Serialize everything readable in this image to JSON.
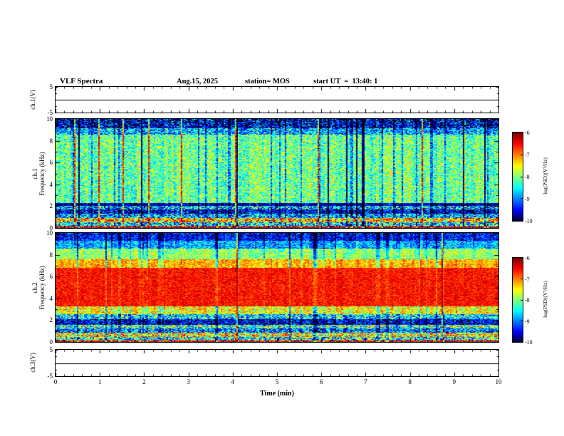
{
  "header": {
    "title": "VLF Spectra",
    "date": "Aug.15, 2025",
    "station": "station= MOS",
    "start_ut": "start UT  =  13:40: 1"
  },
  "xaxis": {
    "label": "Time (min)",
    "range": [
      0,
      10
    ],
    "ticks": [
      0,
      1,
      2,
      3,
      4,
      5,
      6,
      7,
      8,
      9,
      10
    ]
  },
  "panels": {
    "wave1": {
      "ylabel": "ch.1(V)",
      "ylim": [
        -5,
        5
      ],
      "yticks": [
        5,
        -5
      ]
    },
    "spec1": {
      "ylabel1": "ch.1",
      "ylabel2": "Frequency (kHz)",
      "ylim": [
        0,
        10
      ],
      "yticks": [
        0,
        2,
        4,
        6,
        8,
        10
      ]
    },
    "spec2": {
      "ylabel1": "ch.2",
      "ylabel2": "Frequency (kHz)",
      "ylim": [
        0,
        10
      ],
      "yticks": [
        0,
        2,
        4,
        6,
        8,
        10
      ]
    },
    "wave3": {
      "ylabel": "ch.3(V)",
      "ylim": [
        -5,
        5
      ],
      "yticks": [
        5,
        -5
      ]
    }
  },
  "colorbars": {
    "label": "log(PSD)(V²/Hz)",
    "ticks": [
      -6,
      -7,
      -8,
      -9,
      -10
    ],
    "top_value": -6,
    "bottom_value": -10
  },
  "chart_data": [
    {
      "type": "line",
      "name": "ch1_waveform",
      "ylabel": "ch.1(V)",
      "ylim": [
        -5,
        5
      ],
      "yticks": [
        5,
        -5
      ],
      "xlim": [
        0,
        10
      ],
      "value": 0
    },
    {
      "type": "heatmap",
      "name": "ch1_spectrogram",
      "ylabel": "ch.1 Frequency (kHz)",
      "xlabel": "Time (min)",
      "xlim": [
        0,
        10
      ],
      "ylim": [
        0,
        10
      ],
      "yticks": [
        0,
        2,
        4,
        6,
        8,
        10
      ],
      "colorbar": {
        "label": "log(PSD)(V²/Hz)",
        "ticks": [
          -6,
          -7,
          -8,
          -9,
          -10
        ]
      },
      "seed": 42,
      "bands": [
        {
          "f": [
            0.0,
            0.18
          ],
          "v": 0.92,
          "n": 0.08
        },
        {
          "f": [
            0.18,
            0.55
          ],
          "v": 0.35,
          "n": 0.3
        },
        {
          "f": [
            0.55,
            0.95
          ],
          "v": 0.7,
          "n": 0.28
        },
        {
          "f": [
            0.95,
            1.35
          ],
          "v": 0.3,
          "n": 0.25
        },
        {
          "f": [
            1.35,
            1.75
          ],
          "v": 0.1,
          "n": 0.2
        },
        {
          "f": [
            1.75,
            2.05
          ],
          "v": 0.3,
          "n": 0.3
        },
        {
          "f": [
            2.05,
            2.35
          ],
          "v": 0.08,
          "n": 0.12
        },
        {
          "f": [
            2.35,
            8.6
          ],
          "v": 0.48,
          "n": 0.17
        },
        {
          "f": [
            8.6,
            9.2
          ],
          "v": 0.3,
          "n": 0.22
        },
        {
          "f": [
            9.2,
            10.0
          ],
          "v": 0.1,
          "n": 0.25
        }
      ],
      "streaks": {
        "p_strong_neg": 0.06,
        "p_neg": 0.1,
        "p_pos": 0.025,
        "amp_strong_neg": -0.45,
        "amp_neg": -0.22,
        "amp_pos": 0.38
      },
      "streak_damp": null
    },
    {
      "type": "heatmap",
      "name": "ch2_spectrogram",
      "ylabel": "ch.2 Frequency (kHz)",
      "xlabel": "Time (min)",
      "xlim": [
        0,
        10
      ],
      "ylim": [
        0,
        10
      ],
      "yticks": [
        0,
        2,
        4,
        6,
        8,
        10
      ],
      "colorbar": {
        "label": "log(PSD)(V²/Hz)",
        "ticks": [
          -6,
          -7,
          -8,
          -9,
          -10
        ]
      },
      "seed": 1337,
      "bands": [
        {
          "f": [
            0.0,
            0.18
          ],
          "v": 0.9,
          "n": 0.1
        },
        {
          "f": [
            0.18,
            0.5
          ],
          "v": 0.4,
          "n": 0.3
        },
        {
          "f": [
            0.5,
            0.9
          ],
          "v": 0.65,
          "n": 0.28
        },
        {
          "f": [
            0.9,
            1.3
          ],
          "v": 0.25,
          "n": 0.22
        },
        {
          "f": [
            1.3,
            1.6
          ],
          "v": 0.45,
          "n": 0.3
        },
        {
          "f": [
            1.6,
            2.1
          ],
          "v": 0.12,
          "n": 0.18
        },
        {
          "f": [
            2.1,
            2.6
          ],
          "v": 0.35,
          "n": 0.25
        },
        {
          "f": [
            2.6,
            3.3
          ],
          "v": 0.62,
          "n": 0.18
        },
        {
          "f": [
            3.3,
            6.8
          ],
          "v": 0.86,
          "n": 0.08
        },
        {
          "f": [
            6.8,
            7.6
          ],
          "v": 0.7,
          "n": 0.12
        },
        {
          "f": [
            7.6,
            8.6
          ],
          "v": 0.52,
          "n": 0.14
        },
        {
          "f": [
            8.6,
            9.3
          ],
          "v": 0.3,
          "n": 0.15
        },
        {
          "f": [
            9.3,
            10.0
          ],
          "v": 0.15,
          "n": 0.14
        }
      ],
      "streaks": {
        "p_strong_neg": 0.04,
        "p_neg": 0.08,
        "p_pos": 0.02,
        "amp_strong_neg": -0.35,
        "amp_neg": -0.18,
        "amp_pos": 0.3
      },
      "streak_damp": [
        3.3,
        6.8,
        0.25
      ]
    },
    {
      "type": "line",
      "name": "ch3_waveform",
      "ylabel": "ch.3(V)",
      "ylim": [
        -5,
        5
      ],
      "yticks": [
        5,
        -5
      ],
      "xlim": [
        0,
        10
      ],
      "value": 0
    }
  ]
}
